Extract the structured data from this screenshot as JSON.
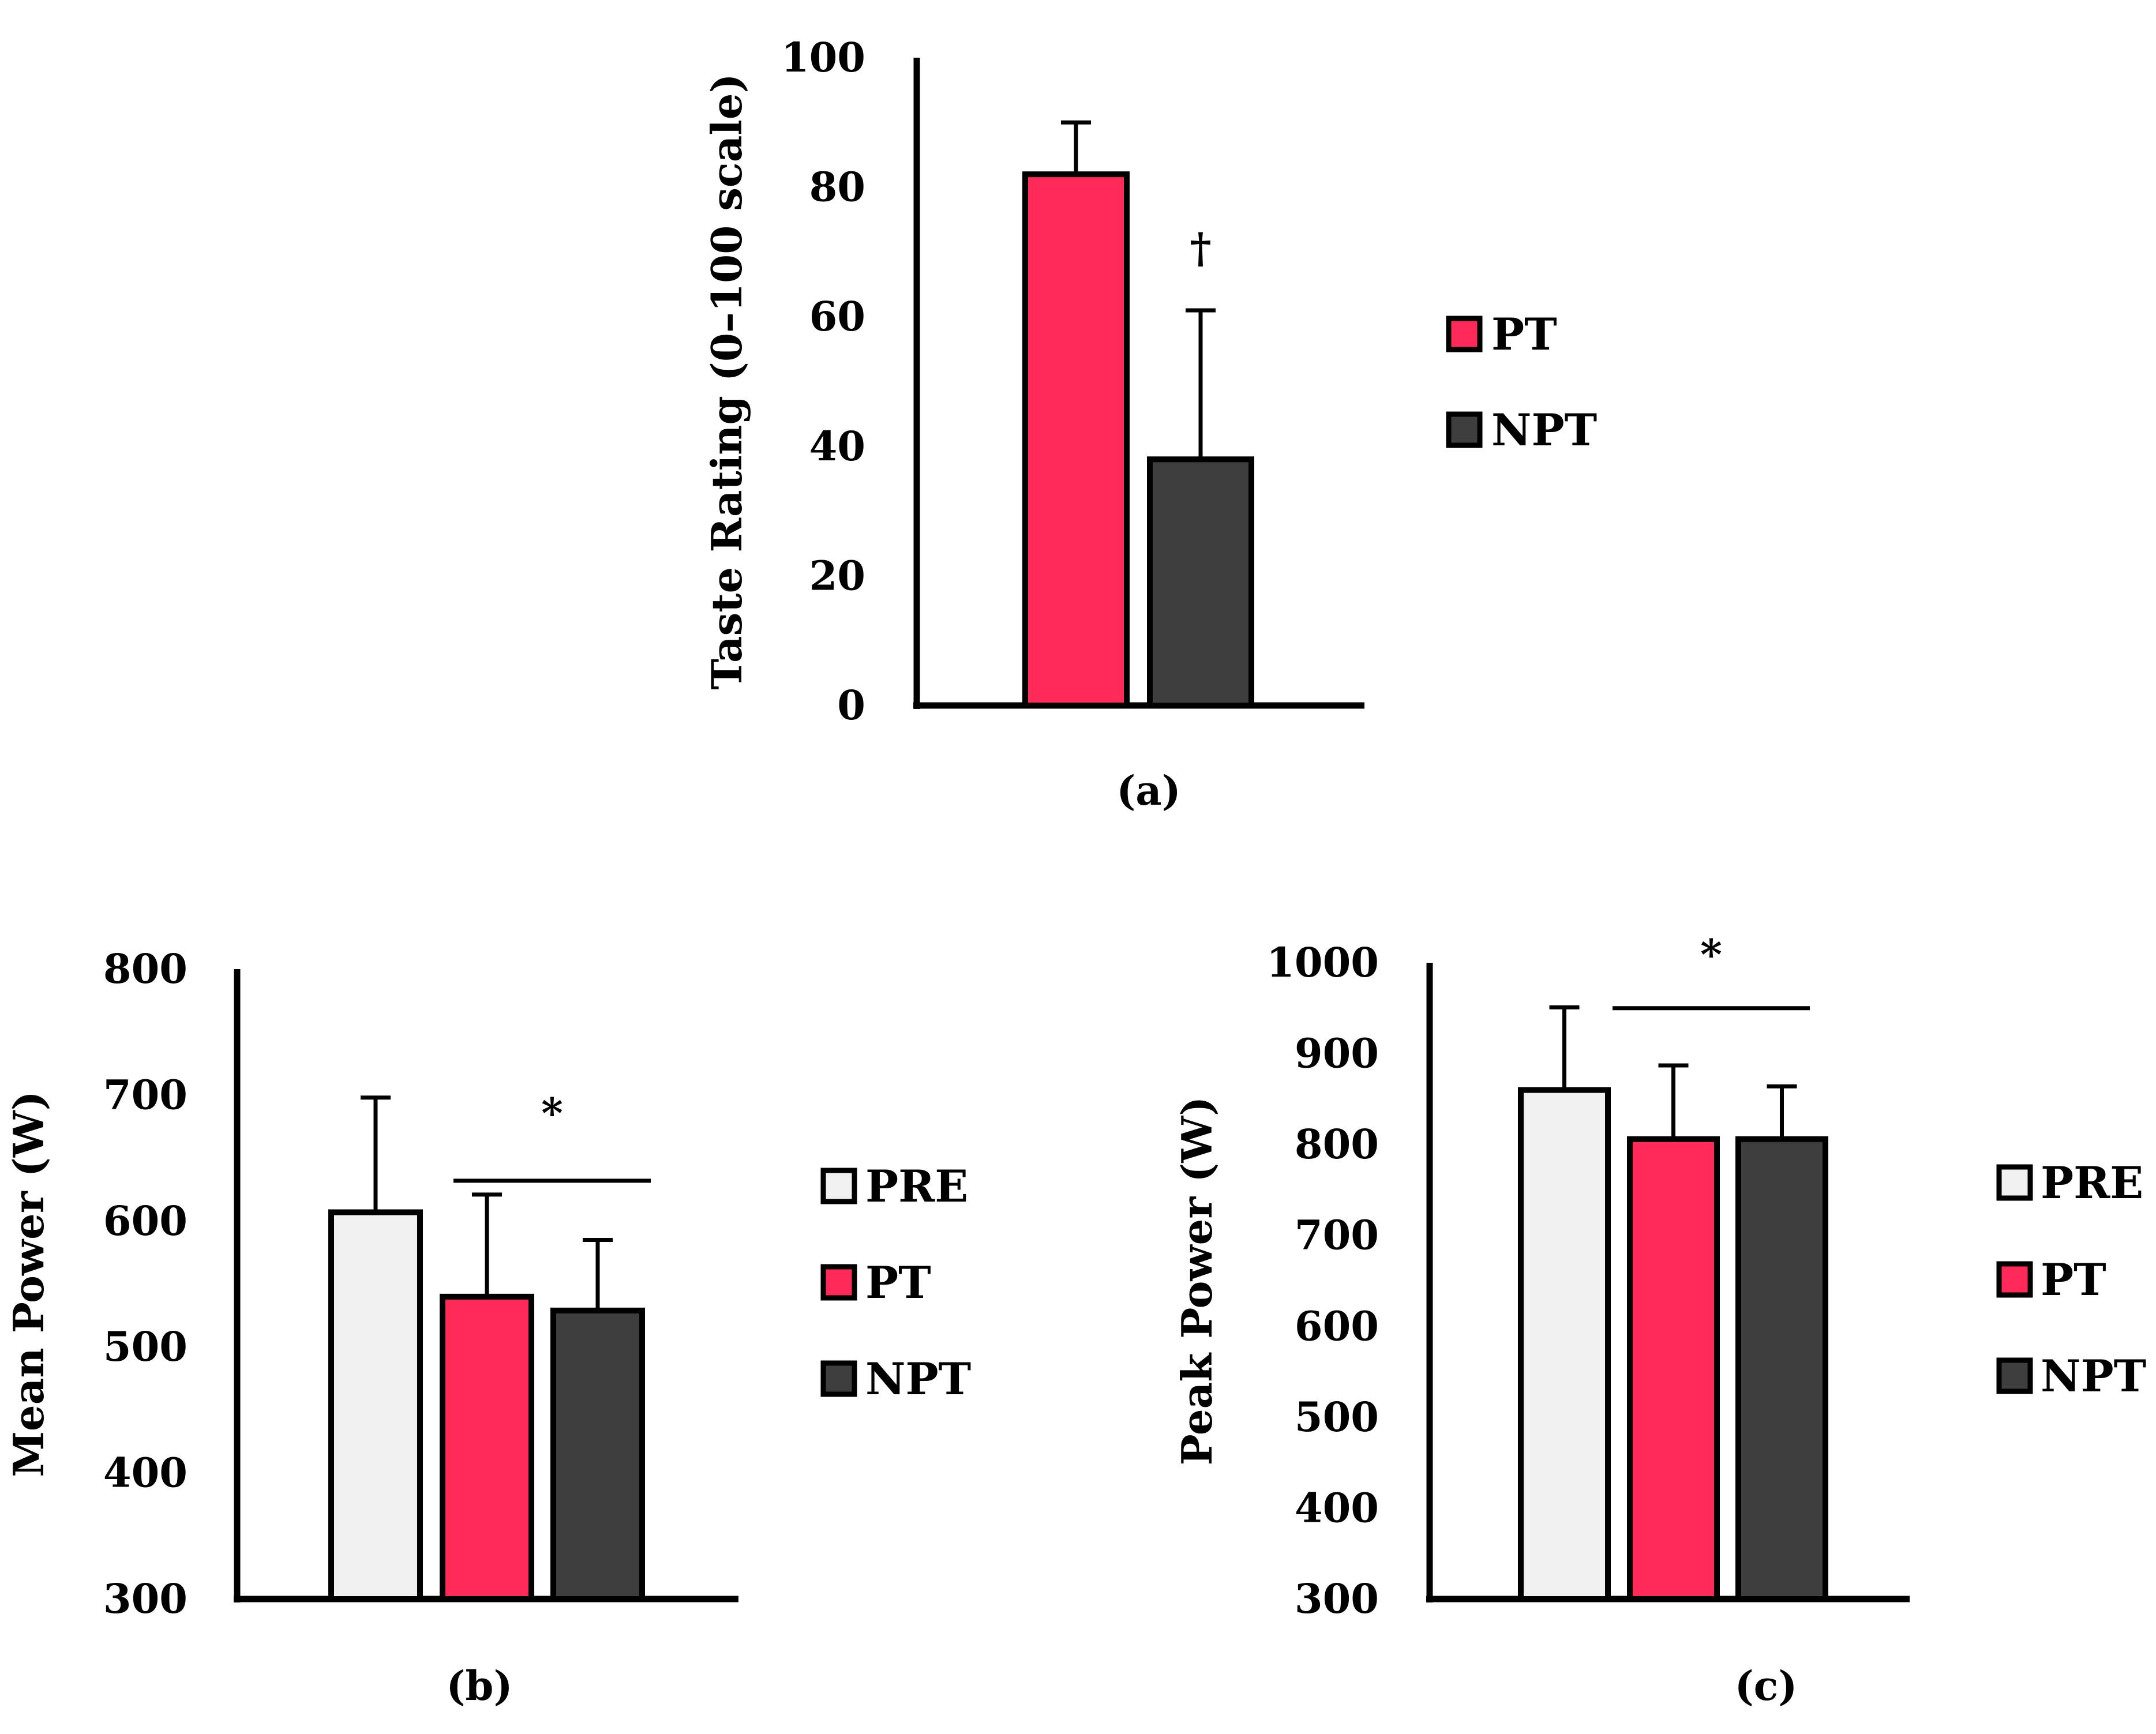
{
  "chart_data": [
    {
      "type": "bar",
      "panel_label": "(a)",
      "categories": [
        "PT",
        "NPT"
      ],
      "values": [
        82,
        38
      ],
      "errors": [
        8,
        23
      ],
      "ylabel": "Taste Rating  (0–100 scale)",
      "ylim": [
        0,
        100
      ],
      "yticks": [
        0,
        20,
        40,
        60,
        80,
        100
      ],
      "tick_labels": [
        "0",
        "20",
        "40",
        "60",
        "80",
        "100"
      ],
      "annotations": [
        {
          "text": "†",
          "bar": "NPT"
        }
      ],
      "legend": [
        {
          "label": "PT",
          "color": "#ff2a58"
        },
        {
          "label": "NPT",
          "color": "#3e3e3e"
        }
      ],
      "legend_position": "right"
    },
    {
      "type": "bar",
      "panel_label": "(b)",
      "categories": [
        "PRE",
        "PT",
        "NPT"
      ],
      "values": [
        607,
        540,
        529
      ],
      "errors": [
        91,
        81,
        56
      ],
      "ylabel": "Mean Power  (W)",
      "ylim": [
        300,
        800
      ],
      "yticks": [
        300,
        400,
        500,
        600,
        700,
        800
      ],
      "tick_labels": [
        "300",
        "400",
        "500",
        "600",
        "700",
        "800"
      ],
      "annotations": [
        {
          "text": "*",
          "spans": [
            "PT",
            "NPT"
          ],
          "value": 632
        }
      ],
      "legend": [
        {
          "label": "PRE",
          "color": "#f0f0f0"
        },
        {
          "label": "PT",
          "color": "#ff2a58"
        },
        {
          "label": "NPT",
          "color": "#3e3e3e"
        }
      ],
      "legend_position": "right"
    },
    {
      "type": "bar",
      "panel_label": "(c)",
      "categories": [
        "PRE",
        "PT",
        "NPT"
      ],
      "values": [
        860,
        806,
        806
      ],
      "errors": [
        91,
        81,
        58
      ],
      "ylabel": "Peak Power (W)",
      "ylim": [
        300,
        1000
      ],
      "yticks": [
        300,
        400,
        500,
        600,
        700,
        800,
        900,
        1000
      ],
      "tick_labels": [
        "300",
        "400",
        "500",
        "600",
        "700",
        "800",
        "900",
        "1000"
      ],
      "annotations": [
        {
          "text": "*",
          "spans": [
            "PT",
            "NPT"
          ],
          "value": 950
        }
      ],
      "legend": [
        {
          "label": "PRE",
          "color": "#f0f0f0"
        },
        {
          "label": "PT",
          "color": "#ff2a58"
        },
        {
          "label": "NPT",
          "color": "#3e3e3e"
        }
      ],
      "legend_position": "right"
    }
  ]
}
